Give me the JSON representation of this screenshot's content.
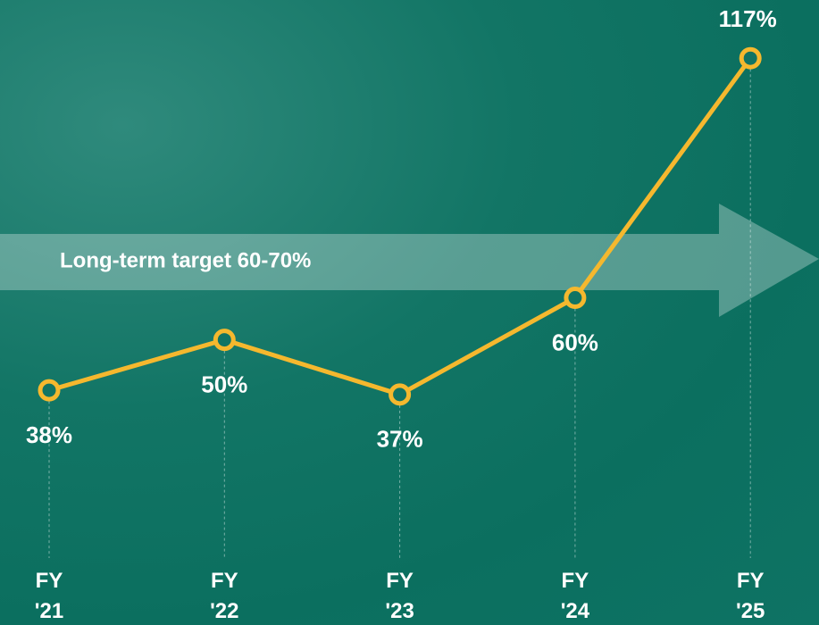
{
  "chart_data": {
    "type": "line",
    "annotation": "Long-term target 60-70%",
    "categories": [
      "FY '21",
      "FY '22",
      "FY '23",
      "FY '24",
      "FY '25"
    ],
    "values": [
      38,
      50,
      37,
      60,
      117
    ],
    "value_labels": [
      "38%",
      "50%",
      "37%",
      "60%",
      "117%"
    ],
    "color": "#f5b82e",
    "ylim": [
      0,
      130
    ]
  }
}
